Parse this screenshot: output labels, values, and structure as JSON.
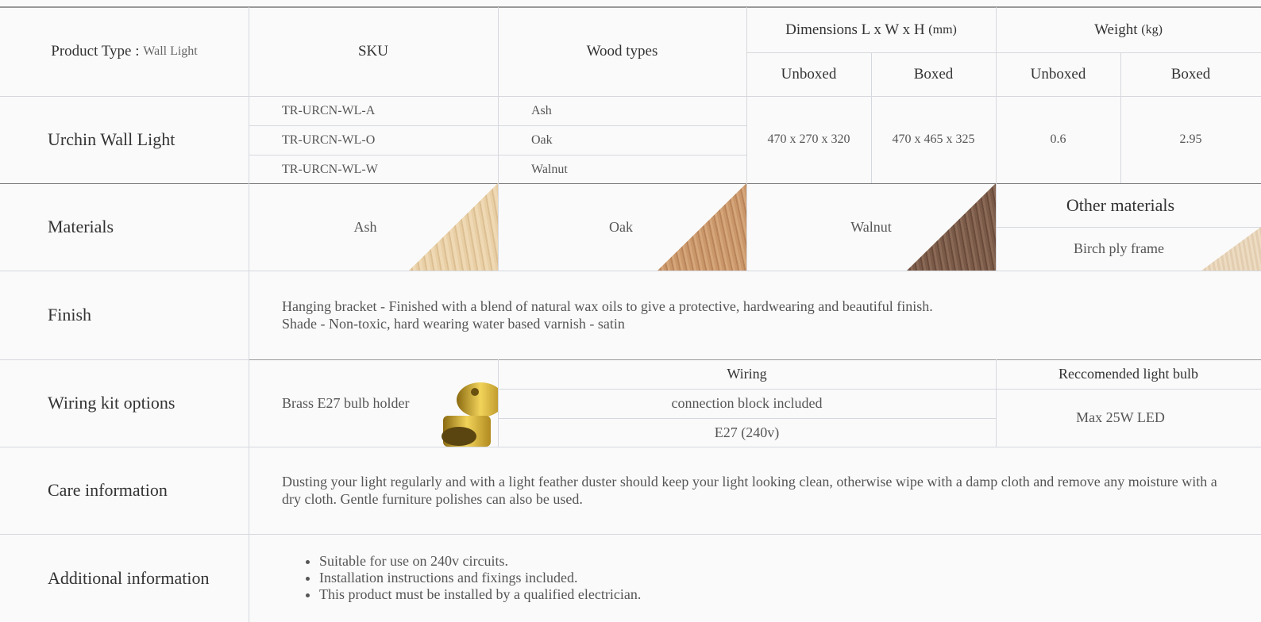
{
  "header": {
    "product_type_label": "Product Type :",
    "product_type": "Wall Light",
    "sku": "SKU",
    "wood_types": "Wood types",
    "dimensions": "Dimensions L x W x H",
    "dimensions_unit": "(mm)",
    "weight": "Weight",
    "weight_unit": "(kg)",
    "dimensions_sub": [
      "Unboxed",
      "Boxed"
    ],
    "weight_sub": [
      "Unboxed",
      "Boxed"
    ]
  },
  "product": {
    "name": "Urchin Wall Light",
    "skus": [
      "TR-URCN-WL-A",
      "TR-URCN-WL-O",
      "TR-URCN-WL-W"
    ],
    "woods": [
      "Ash",
      "Oak",
      "Walnut"
    ],
    "dimensions_unboxed": "470 x 270 x 320",
    "dimensions_boxed": "470 x 465 x 325",
    "weight_unboxed": 0.6,
    "weight_boxed": 2.95
  },
  "materials": {
    "label": "Materials",
    "woods": [
      "Ash",
      "Oak",
      "Walnut"
    ],
    "other_title": "Other materials",
    "other": "Birch ply frame"
  },
  "finish": {
    "label": "Finish",
    "lines": [
      "Hanging bracket - Finished with a blend of natural wax oils to give a protective, hardwearing and beautiful finish.",
      "Shade - Non-toxic, hard wearing water based varnish - satin"
    ]
  },
  "wiring": {
    "label": "Wiring kit options",
    "holder": "Brass E27 bulb holder",
    "wiring_title": "Wiring",
    "wiring_items": [
      "connection block included",
      "E27 (240v)"
    ],
    "bulb_title": "Reccomended light bulb",
    "bulb": "Max 25W LED"
  },
  "care": {
    "label": "Care information",
    "text": "Dusting your light regularly and with a light feather duster should keep your light looking clean, otherwise wipe with a damp cloth and remove any moisture with a dry cloth. Gentle furniture polishes can also be used."
  },
  "additional": {
    "label": "Additional information",
    "items": [
      "Suitable for use on 240v circuits.",
      "Installation instructions and fixings included.",
      "This product must be installed by a qualified electrician."
    ]
  }
}
